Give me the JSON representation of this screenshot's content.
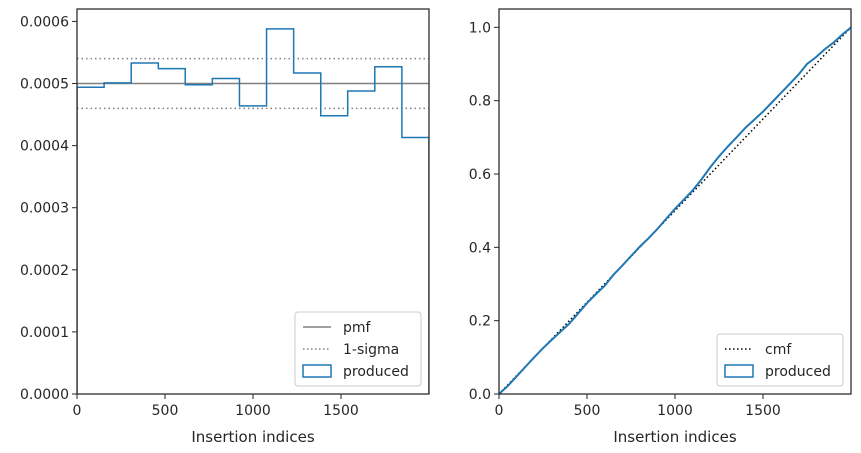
{
  "chart_data": [
    {
      "type": "step",
      "xlabel": "Insertion indices",
      "ylabel": "",
      "xlim": [
        0,
        2000
      ],
      "ylim": [
        0,
        0.00062
      ],
      "xticks": [
        0,
        500,
        1000,
        1500
      ],
      "xtick_labels": [
        "0",
        "500",
        "1000",
        "1500"
      ],
      "yticks": [
        0,
        0.0001,
        0.0002,
        0.0003,
        0.0004,
        0.0005,
        0.0006
      ],
      "ytick_labels": [
        "0.0000",
        "0.0001",
        "0.0002",
        "0.0003",
        "0.0004",
        "0.0005",
        "0.0006"
      ],
      "pmf": 0.0005,
      "sigma_upper": 0.00054,
      "sigma_lower": 0.00046,
      "bin_edges": [
        0,
        154,
        308,
        462,
        615,
        769,
        923,
        1077,
        1231,
        1385,
        1538,
        1692,
        1846,
        2000
      ],
      "produced": [
        0.000494,
        0.000501,
        0.000533,
        0.000524,
        0.000498,
        0.000508,
        0.000464,
        0.000588,
        0.000517,
        0.000448,
        0.000488,
        0.000527,
        0.000413
      ],
      "legend_position": "lower-right",
      "legend": [
        {
          "label": "pmf",
          "style": "solid",
          "color": "#808080"
        },
        {
          "label": "1-sigma",
          "style": "dotted",
          "color": "#808080"
        },
        {
          "label": "produced",
          "style": "box",
          "color": "#1f77b4"
        }
      ]
    },
    {
      "type": "line",
      "xlabel": "Insertion indices",
      "ylabel": "",
      "xlim": [
        0,
        2000
      ],
      "ylim": [
        0,
        1.05
      ],
      "xticks": [
        0,
        500,
        1000,
        1500
      ],
      "xtick_labels": [
        "0",
        "500",
        "1000",
        "1500"
      ],
      "yticks": [
        0,
        0.2,
        0.4,
        0.6,
        0.8,
        1.0
      ],
      "ytick_labels": [
        "0.0",
        "0.2",
        "0.4",
        "0.6",
        "0.8",
        "1.0"
      ],
      "cmf": {
        "x": [
          0,
          2000
        ],
        "y": [
          0,
          1.0
        ]
      },
      "produced": {
        "x": [
          0,
          50,
          100,
          150,
          200,
          250,
          300,
          350,
          400,
          450,
          500,
          550,
          600,
          650,
          700,
          750,
          800,
          850,
          900,
          950,
          1000,
          1050,
          1100,
          1150,
          1200,
          1250,
          1300,
          1350,
          1400,
          1450,
          1500,
          1550,
          1600,
          1650,
          1700,
          1750,
          1800,
          1850,
          1900,
          1950,
          2000
        ],
        "y": [
          0,
          0.022,
          0.048,
          0.074,
          0.1,
          0.125,
          0.148,
          0.17,
          0.192,
          0.22,
          0.248,
          0.272,
          0.295,
          0.325,
          0.35,
          0.376,
          0.402,
          0.425,
          0.45,
          0.478,
          0.505,
          0.53,
          0.555,
          0.585,
          0.618,
          0.648,
          0.675,
          0.7,
          0.726,
          0.748,
          0.77,
          0.795,
          0.82,
          0.845,
          0.87,
          0.9,
          0.918,
          0.94,
          0.958,
          0.98,
          1.0
        ]
      },
      "legend_position": "lower-right",
      "legend": [
        {
          "label": "cmf",
          "style": "dotted",
          "color": "#000000"
        },
        {
          "label": "produced",
          "style": "box",
          "color": "#1f77b4"
        }
      ]
    }
  ]
}
